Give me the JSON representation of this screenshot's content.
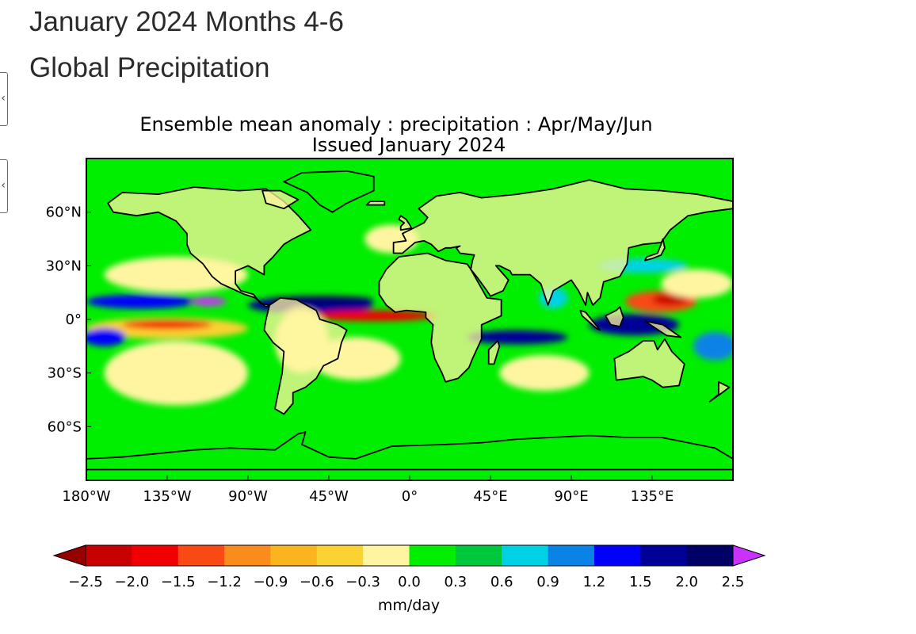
{
  "header": {
    "title": "January 2024 Months 4-6",
    "subtitle": "Global Precipitation"
  },
  "chart_data": {
    "type": "heatmap",
    "title_line1": "Ensemble mean anomaly : precipitation : Apr/May/Jun",
    "title_line2": "Issued January 2024",
    "x_ticks": [
      "180°W",
      "135°W",
      "90°W",
      "45°W",
      "0°",
      "45°E",
      "90°E",
      "135°E"
    ],
    "x_tick_values": [
      -180,
      -135,
      -90,
      -45,
      0,
      45,
      90,
      135
    ],
    "y_ticks": [
      "60°N",
      "30°N",
      "0°",
      "30°S",
      "60°S"
    ],
    "y_tick_values": [
      60,
      30,
      0,
      -30,
      -60
    ],
    "xlim": [
      -180,
      180
    ],
    "ylim": [
      -90,
      90
    ],
    "colorbar": {
      "label": "mm/day",
      "tick_labels": [
        "−2.5",
        "−2.0",
        "−1.5",
        "−1.2",
        "−0.9",
        "−0.6",
        "−0.3",
        "0.0",
        "0.3",
        "0.6",
        "0.9",
        "1.2",
        "1.5",
        "2.0",
        "2.5"
      ],
      "boundaries": [
        -2.5,
        -2.0,
        -1.5,
        -1.2,
        -0.9,
        -0.6,
        -0.3,
        0.0,
        0.3,
        0.6,
        0.9,
        1.2,
        1.5,
        2.0,
        2.5
      ],
      "colors": [
        "#c80000",
        "#f00000",
        "#fa4a14",
        "#fa8c1e",
        "#fab41e",
        "#fad232",
        "#fff5a0",
        "#00ee00",
        "#00c83c",
        "#00d2e6",
        "#0a82e6",
        "#0000fa",
        "#000096",
        "#000064"
      ],
      "under_color": "#960000",
      "over_color": "#c832fa"
    },
    "background_color": "#00ee00",
    "anomaly_regions": [
      {
        "lon": -150,
        "lat": 10,
        "rlon": 30,
        "rlat": 4,
        "value": 1.3
      },
      {
        "lon": -112,
        "lat": 10,
        "rlon": 10,
        "rlat": 2.5,
        "value": 2.6
      },
      {
        "lon": -135,
        "lat": -5,
        "rlon": 45,
        "rlat": 6,
        "value": -0.5
      },
      {
        "lon": -135,
        "lat": -3,
        "rlon": 25,
        "rlat": 2.5,
        "value": -1.8
      },
      {
        "lon": -170,
        "lat": -10,
        "rlon": 12,
        "rlat": 5,
        "value": 1.4
      },
      {
        "lon": -130,
        "lat": 25,
        "rlon": 40,
        "rlat": 10,
        "value": -0.3
      },
      {
        "lon": -130,
        "lat": -30,
        "rlon": 40,
        "rlat": 18,
        "value": -0.3
      },
      {
        "lon": -55,
        "lat": 8,
        "rlon": 35,
        "rlat": 5,
        "value": 1.6
      },
      {
        "lon": -50,
        "lat": 11,
        "rlon": 30,
        "rlat": 2.2,
        "value": 2.2
      },
      {
        "lon": -20,
        "lat": 2,
        "rlon": 35,
        "rlat": 3,
        "value": -1.6
      },
      {
        "lon": -30,
        "lat": -22,
        "rlon": 25,
        "rlat": 12,
        "value": -0.3
      },
      {
        "lon": -60,
        "lat": -12,
        "rlon": 15,
        "rlat": 18,
        "value": -0.3
      },
      {
        "lon": -10,
        "lat": 45,
        "rlon": 15,
        "rlat": 8,
        "value": -0.3
      },
      {
        "lon": 60,
        "lat": -10,
        "rlon": 28,
        "rlat": 4,
        "value": 1.5
      },
      {
        "lon": 75,
        "lat": -30,
        "rlon": 25,
        "rlat": 10,
        "value": -0.3
      },
      {
        "lon": 80,
        "lat": 12,
        "rlon": 8,
        "rlat": 6,
        "value": 0.7
      },
      {
        "lon": 125,
        "lat": -3,
        "rlon": 25,
        "rlat": 6,
        "value": 1.6
      },
      {
        "lon": 140,
        "lat": 10,
        "rlon": 20,
        "rlat": 6,
        "value": -1.5
      },
      {
        "lon": 145,
        "lat": 11,
        "rlon": 10,
        "rlat": 3,
        "value": -2.1
      },
      {
        "lon": 130,
        "lat": 30,
        "rlon": 25,
        "rlat": 4,
        "value": 0.7
      },
      {
        "lon": 160,
        "lat": 20,
        "rlon": 20,
        "rlat": 8,
        "value": -0.3
      },
      {
        "lon": 170,
        "lat": -15,
        "rlon": 12,
        "rlat": 8,
        "value": 0.9
      }
    ],
    "land_polygons": [
      {
        "name": "north-america",
        "points": [
          [
            -168,
            65
          ],
          [
            -160,
            71
          ],
          [
            -140,
            70
          ],
          [
            -120,
            74
          ],
          [
            -95,
            72
          ],
          [
            -80,
            73
          ],
          [
            -70,
            66
          ],
          [
            -62,
            58
          ],
          [
            -55,
            50
          ],
          [
            -65,
            45
          ],
          [
            -70,
            42
          ],
          [
            -76,
            35
          ],
          [
            -81,
            30
          ],
          [
            -81,
            25
          ],
          [
            -90,
            30
          ],
          [
            -97,
            27
          ],
          [
            -97,
            20
          ],
          [
            -94,
            16
          ],
          [
            -87,
            14
          ],
          [
            -83,
            9
          ],
          [
            -78,
            8
          ],
          [
            -80,
            7
          ],
          [
            -86,
            12
          ],
          [
            -92,
            14
          ],
          [
            -105,
            20
          ],
          [
            -110,
            24
          ],
          [
            -115,
            31
          ],
          [
            -122,
            37
          ],
          [
            -124,
            42
          ],
          [
            -124,
            48
          ],
          [
            -130,
            55
          ],
          [
            -140,
            60
          ],
          [
            -152,
            58
          ],
          [
            -165,
            60
          ]
        ]
      },
      {
        "name": "greenland",
        "points": [
          [
            -70,
            77
          ],
          [
            -60,
            82
          ],
          [
            -35,
            83
          ],
          [
            -20,
            80
          ],
          [
            -20,
            72
          ],
          [
            -35,
            65
          ],
          [
            -43,
            60
          ],
          [
            -50,
            64
          ],
          [
            -57,
            71
          ]
        ]
      },
      {
        "name": "south-america",
        "points": [
          [
            -78,
            8
          ],
          [
            -72,
            12
          ],
          [
            -63,
            11
          ],
          [
            -52,
            5
          ],
          [
            -50,
            0
          ],
          [
            -40,
            -3
          ],
          [
            -35,
            -6
          ],
          [
            -38,
            -13
          ],
          [
            -40,
            -22
          ],
          [
            -48,
            -26
          ],
          [
            -52,
            -33
          ],
          [
            -58,
            -38
          ],
          [
            -65,
            -41
          ],
          [
            -65,
            -47
          ],
          [
            -70,
            -53
          ],
          [
            -75,
            -50
          ],
          [
            -73,
            -40
          ],
          [
            -71,
            -30
          ],
          [
            -70,
            -18
          ],
          [
            -76,
            -13
          ],
          [
            -81,
            -6
          ],
          [
            -80,
            0
          ]
        ]
      },
      {
        "name": "africa",
        "points": [
          [
            -17,
            21
          ],
          [
            -13,
            28
          ],
          [
            -6,
            35
          ],
          [
            10,
            37
          ],
          [
            20,
            33
          ],
          [
            32,
            31
          ],
          [
            34,
            28
          ],
          [
            43,
            12
          ],
          [
            51,
            11
          ],
          [
            51,
            2
          ],
          [
            40,
            -3
          ],
          [
            40,
            -11
          ],
          [
            35,
            -22
          ],
          [
            33,
            -27
          ],
          [
            27,
            -33
          ],
          [
            20,
            -35
          ],
          [
            18,
            -30
          ],
          [
            14,
            -22
          ],
          [
            12,
            -13
          ],
          [
            13,
            -3
          ],
          [
            9,
            1
          ],
          [
            9,
            4
          ],
          [
            -2,
            5
          ],
          [
            -8,
            4
          ],
          [
            -13,
            8
          ],
          [
            -17,
            14
          ]
        ]
      },
      {
        "name": "eurasia",
        "points": [
          [
            -9,
            37
          ],
          [
            -9,
            43
          ],
          [
            -2,
            44
          ],
          [
            -4,
            48
          ],
          [
            2,
            51
          ],
          [
            8,
            54
          ],
          [
            10,
            57
          ],
          [
            5,
            62
          ],
          [
            15,
            69
          ],
          [
            28,
            71
          ],
          [
            40,
            68
          ],
          [
            60,
            70
          ],
          [
            80,
            73
          ],
          [
            100,
            78
          ],
          [
            120,
            73
          ],
          [
            140,
            72
          ],
          [
            160,
            70
          ],
          [
            180,
            66
          ],
          [
            180,
            62
          ],
          [
            165,
            60
          ],
          [
            155,
            58
          ],
          [
            145,
            50
          ],
          [
            140,
            43
          ],
          [
            130,
            42
          ],
          [
            122,
            40
          ],
          [
            121,
            31
          ],
          [
            117,
            24
          ],
          [
            108,
            21
          ],
          [
            106,
            12
          ],
          [
            102,
            8
          ],
          [
            99,
            15
          ],
          [
            98,
            8
          ],
          [
            94,
            16
          ],
          [
            90,
            22
          ],
          [
            80,
            16
          ],
          [
            77,
            8
          ],
          [
            73,
            20
          ],
          [
            67,
            25
          ],
          [
            57,
            25
          ],
          [
            56,
            27
          ],
          [
            50,
            30
          ],
          [
            48,
            30
          ],
          [
            55,
            22
          ],
          [
            52,
            16
          ],
          [
            45,
            13
          ],
          [
            43,
            16
          ],
          [
            38,
            23
          ],
          [
            34,
            28
          ],
          [
            35,
            33
          ],
          [
            36,
            36
          ],
          [
            28,
            37
          ],
          [
            26,
            40
          ],
          [
            28,
            41
          ],
          [
            23,
            40
          ],
          [
            20,
            40
          ],
          [
            16,
            38
          ],
          [
            12,
            42
          ],
          [
            8,
            44
          ],
          [
            3,
            43
          ],
          [
            -4,
            37
          ]
        ]
      },
      {
        "name": "australia",
        "points": [
          [
            114,
            -22
          ],
          [
            122,
            -18
          ],
          [
            130,
            -12
          ],
          [
            136,
            -12
          ],
          [
            138,
            -17
          ],
          [
            142,
            -11
          ],
          [
            146,
            -18
          ],
          [
            153,
            -25
          ],
          [
            150,
            -37
          ],
          [
            141,
            -38
          ],
          [
            135,
            -34
          ],
          [
            130,
            -32
          ],
          [
            115,
            -34
          ]
        ]
      },
      {
        "name": "antarctica",
        "points": [
          [
            -180,
            -84
          ],
          [
            -180,
            -78
          ],
          [
            -160,
            -77
          ],
          [
            -140,
            -75
          ],
          [
            -120,
            -73
          ],
          [
            -100,
            -72
          ],
          [
            -75,
            -73
          ],
          [
            -62,
            -64
          ],
          [
            -58,
            -63
          ],
          [
            -60,
            -70
          ],
          [
            -45,
            -77
          ],
          [
            -30,
            -78
          ],
          [
            -10,
            -71
          ],
          [
            20,
            -70
          ],
          [
            40,
            -69
          ],
          [
            60,
            -67
          ],
          [
            80,
            -66
          ],
          [
            100,
            -65
          ],
          [
            120,
            -66
          ],
          [
            140,
            -66
          ],
          [
            160,
            -70
          ],
          [
            170,
            -72
          ],
          [
            180,
            -78
          ],
          [
            180,
            -84
          ]
        ]
      },
      {
        "name": "britain",
        "points": [
          [
            -5,
            50
          ],
          [
            1,
            51
          ],
          [
            0,
            53
          ],
          [
            -2,
            56
          ],
          [
            -5,
            58
          ],
          [
            -6,
            56
          ],
          [
            -3,
            54
          ],
          [
            -5,
            52
          ]
        ]
      },
      {
        "name": "madagascar",
        "points": [
          [
            44,
            -25
          ],
          [
            47,
            -25
          ],
          [
            50,
            -15
          ],
          [
            49,
            -12
          ],
          [
            44,
            -17
          ]
        ]
      },
      {
        "name": "japan",
        "points": [
          [
            131,
            33
          ],
          [
            135,
            34
          ],
          [
            140,
            36
          ],
          [
            142,
            40
          ],
          [
            141,
            45
          ],
          [
            140,
            42
          ],
          [
            138,
            37
          ],
          [
            132,
            35
          ]
        ]
      },
      {
        "name": "borneo",
        "points": [
          [
            109,
            2
          ],
          [
            112,
            -3
          ],
          [
            117,
            -4
          ],
          [
            119,
            1
          ],
          [
            117,
            7
          ],
          [
            115,
            5
          ]
        ]
      },
      {
        "name": "sumatra",
        "points": [
          [
            95,
            5
          ],
          [
            98,
            4
          ],
          [
            106,
            -6
          ],
          [
            104,
            -5
          ],
          [
            96,
            2
          ]
        ]
      },
      {
        "name": "new-guinea",
        "points": [
          [
            131,
            -1
          ],
          [
            141,
            -3
          ],
          [
            151,
            -10
          ],
          [
            143,
            -9
          ],
          [
            137,
            -5
          ]
        ]
      },
      {
        "name": "new-zealand",
        "points": [
          [
            172,
            -35
          ],
          [
            178,
            -38
          ],
          [
            174,
            -41
          ],
          [
            167,
            -46
          ],
          [
            172,
            -42
          ]
        ]
      },
      {
        "name": "baffin-island",
        "points": [
          [
            -80,
            65
          ],
          [
            -70,
            62
          ],
          [
            -62,
            67
          ],
          [
            -72,
            72
          ],
          [
            -82,
            72
          ]
        ]
      },
      {
        "name": "iceland",
        "points": [
          [
            -24,
            64
          ],
          [
            -14,
            64
          ],
          [
            -14,
            66
          ],
          [
            -22,
            66
          ]
        ]
      }
    ]
  }
}
